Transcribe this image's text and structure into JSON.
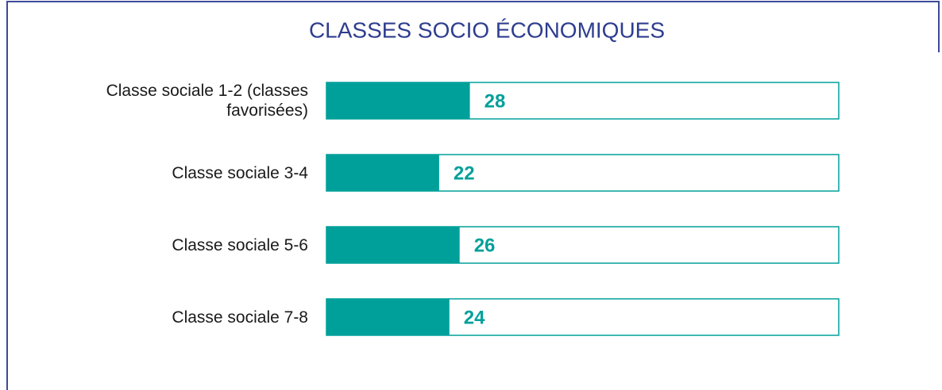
{
  "chart_data": {
    "type": "barh",
    "title": "CLASSES SOCIO ÉCONOMIQUES",
    "categories": [
      "Classe sociale 1-2 (classes favorisées)",
      "Classe sociale 3-4",
      "Classe sociale 5-6",
      "Classe sociale 7-8"
    ],
    "values": [
      28,
      22,
      26,
      24
    ],
    "color": "#00a09a",
    "xlim": [
      0,
      100
    ]
  }
}
